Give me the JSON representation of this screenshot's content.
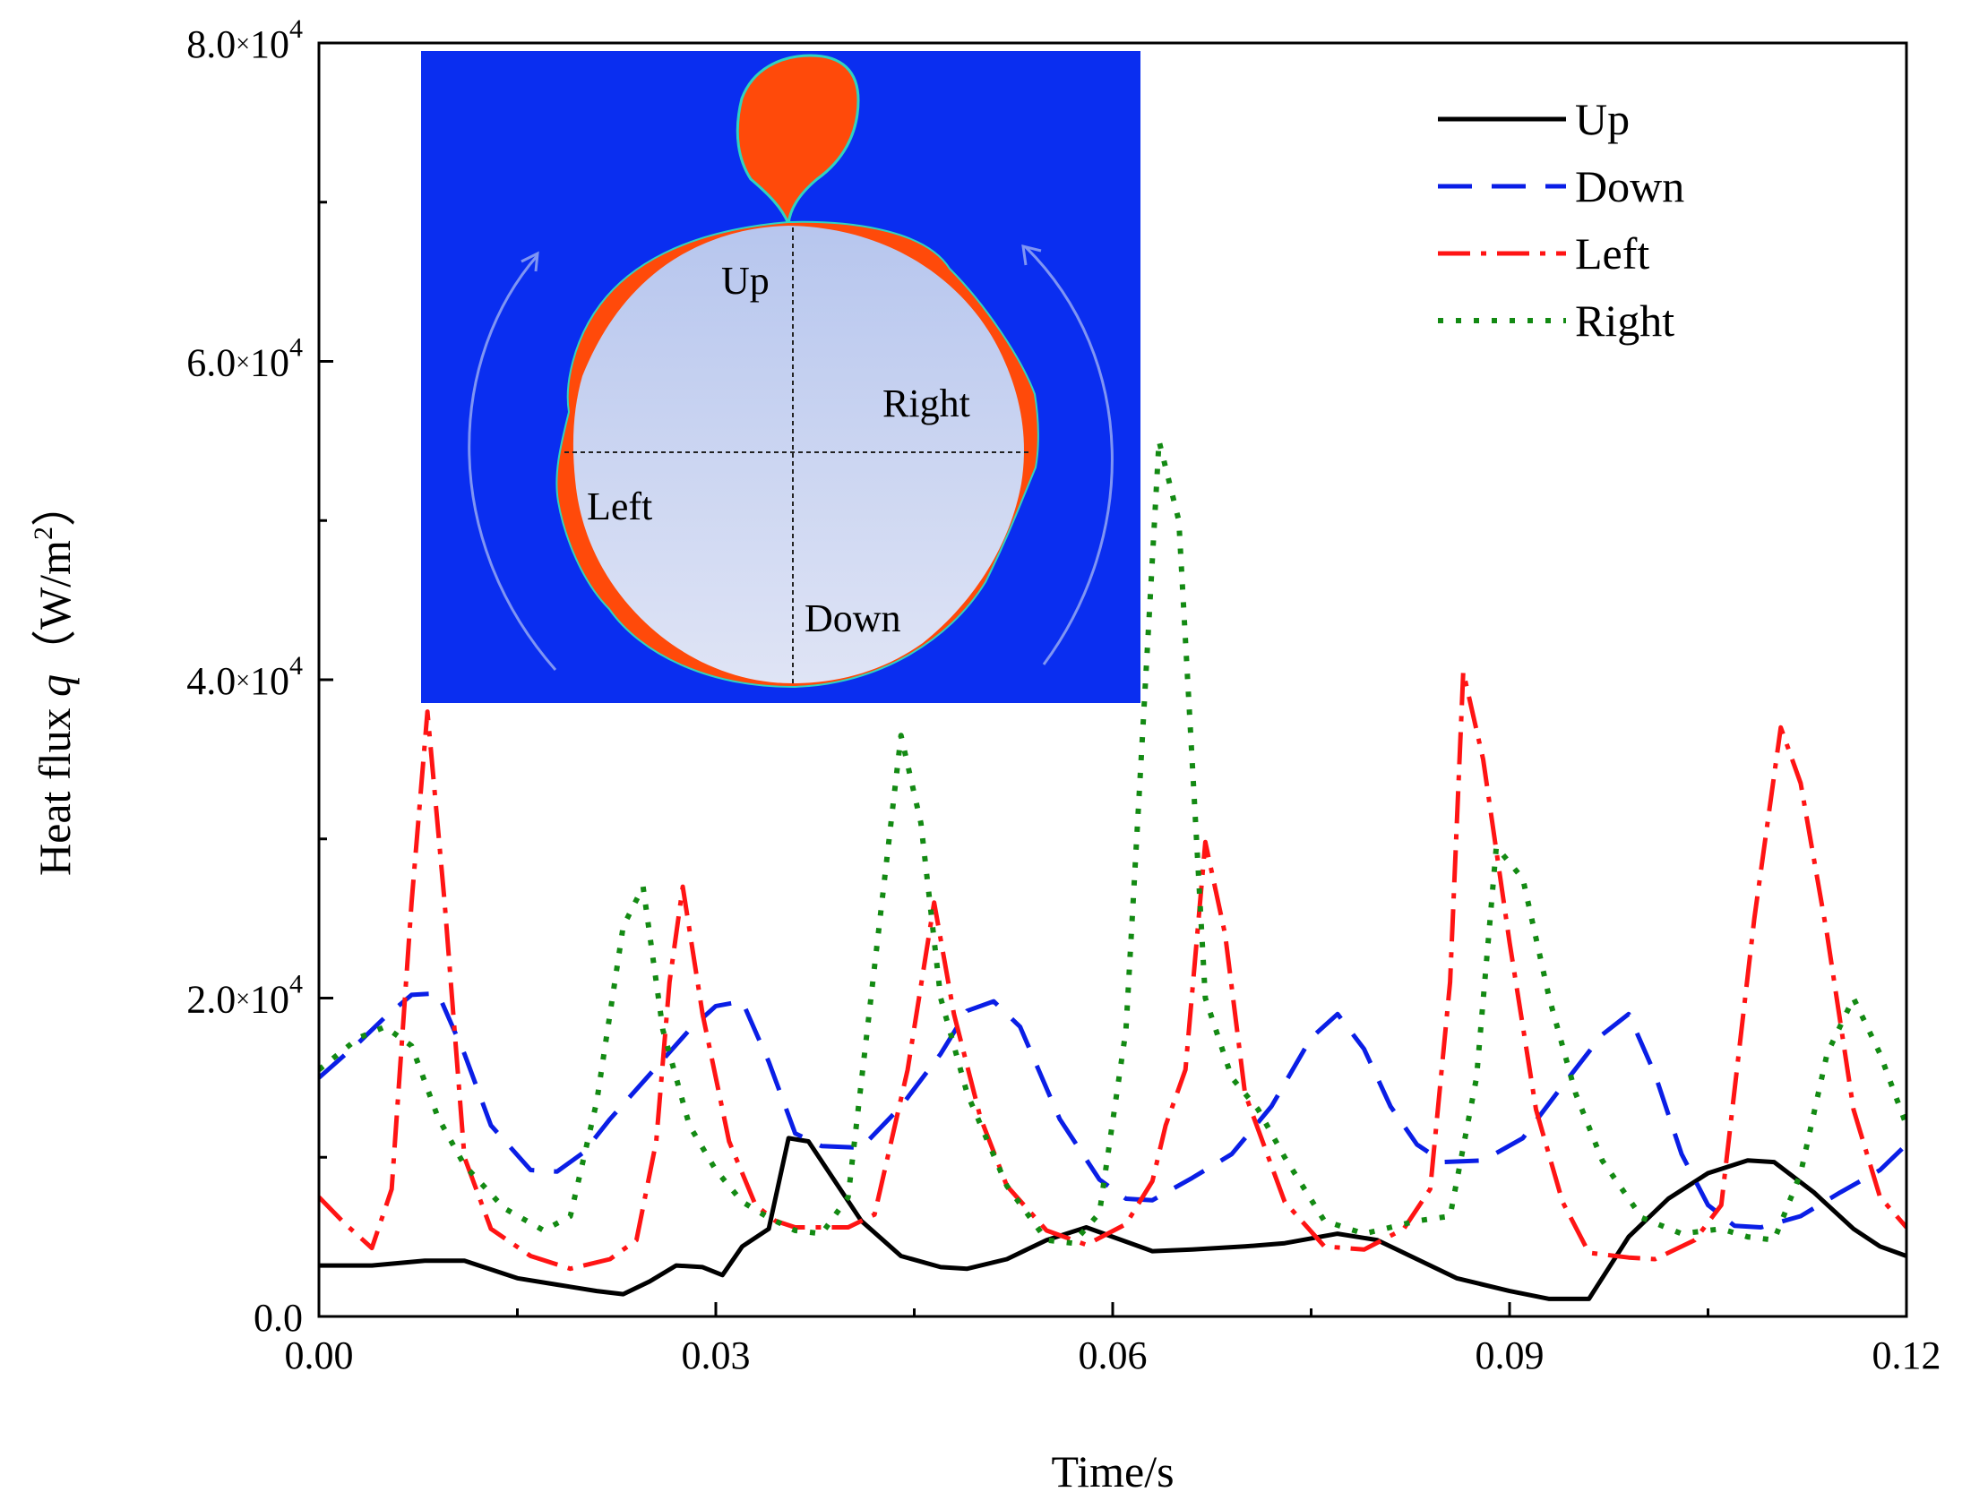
{
  "chart_data": {
    "type": "line",
    "xlabel": "Time/s",
    "ylabel_prefix": "Heat flux ",
    "ylabel_var": "q",
    "ylabel_unit": "（W/m",
    "ylabel_sup": "2",
    "ylabel_close": "）",
    "xlim": [
      0,
      0.12
    ],
    "ylim": [
      0,
      80000
    ],
    "x_ticks": [
      {
        "v": 0.0,
        "label": "0.00"
      },
      {
        "v": 0.03,
        "label": "0.03"
      },
      {
        "v": 0.06,
        "label": "0.06"
      },
      {
        "v": 0.09,
        "label": "0.09"
      },
      {
        "v": 0.12,
        "label": "0.12"
      }
    ],
    "y_ticks": [
      {
        "v": 0,
        "mant": "0.0",
        "exp": ""
      },
      {
        "v": 20000,
        "mant": "2.0",
        "exp": "4"
      },
      {
        "v": 40000,
        "mant": "4.0",
        "exp": "4"
      },
      {
        "v": 60000,
        "mant": "6.0",
        "exp": "4"
      },
      {
        "v": 80000,
        "mant": "8.0",
        "exp": "4"
      }
    ],
    "legend_position": "top-right",
    "series": [
      {
        "name": "Up",
        "color": "#000000",
        "dash": "solid",
        "points": [
          [
            0,
            3200
          ],
          [
            0.004,
            3200
          ],
          [
            0.008,
            3500
          ],
          [
            0.011,
            3500
          ],
          [
            0.015,
            2400
          ],
          [
            0.018,
            2000
          ],
          [
            0.021,
            1600
          ],
          [
            0.023,
            1400
          ],
          [
            0.025,
            2200
          ],
          [
            0.027,
            3200
          ],
          [
            0.029,
            3100
          ],
          [
            0.0305,
            2600
          ],
          [
            0.032,
            4400
          ],
          [
            0.034,
            5500
          ],
          [
            0.0355,
            11200
          ],
          [
            0.037,
            11000
          ],
          [
            0.039,
            8500
          ],
          [
            0.041,
            6000
          ],
          [
            0.044,
            3800
          ],
          [
            0.047,
            3100
          ],
          [
            0.049,
            3000
          ],
          [
            0.052,
            3600
          ],
          [
            0.055,
            4800
          ],
          [
            0.058,
            5600
          ],
          [
            0.06,
            5000
          ],
          [
            0.063,
            4100
          ],
          [
            0.066,
            4200
          ],
          [
            0.07,
            4400
          ],
          [
            0.073,
            4600
          ],
          [
            0.077,
            5200
          ],
          [
            0.08,
            4800
          ],
          [
            0.083,
            3600
          ],
          [
            0.086,
            2400
          ],
          [
            0.09,
            1600
          ],
          [
            0.093,
            1100
          ],
          [
            0.096,
            1100
          ],
          [
            0.099,
            5000
          ],
          [
            0.102,
            7400
          ],
          [
            0.105,
            9000
          ],
          [
            0.108,
            9800
          ],
          [
            0.11,
            9700
          ],
          [
            0.113,
            7800
          ],
          [
            0.116,
            5500
          ],
          [
            0.118,
            4400
          ],
          [
            0.12,
            3800
          ]
        ]
      },
      {
        "name": "Down",
        "color": "#0a1ee6",
        "dash": "dash",
        "points": [
          [
            0,
            15000
          ],
          [
            0.003,
            17200
          ],
          [
            0.005,
            18800
          ],
          [
            0.007,
            20200
          ],
          [
            0.009,
            20300
          ],
          [
            0.011,
            16500
          ],
          [
            0.013,
            12000
          ],
          [
            0.016,
            9200
          ],
          [
            0.018,
            9100
          ],
          [
            0.02,
            10300
          ],
          [
            0.022,
            12400
          ],
          [
            0.025,
            15200
          ],
          [
            0.028,
            18000
          ],
          [
            0.03,
            19500
          ],
          [
            0.032,
            19800
          ],
          [
            0.034,
            16000
          ],
          [
            0.036,
            11500
          ],
          [
            0.038,
            10700
          ],
          [
            0.041,
            10600
          ],
          [
            0.044,
            13200
          ],
          [
            0.047,
            16500
          ],
          [
            0.049,
            19200
          ],
          [
            0.051,
            19800
          ],
          [
            0.053,
            18200
          ],
          [
            0.056,
            12400
          ],
          [
            0.059,
            8600
          ],
          [
            0.061,
            7400
          ],
          [
            0.063,
            7300
          ],
          [
            0.066,
            8700
          ],
          [
            0.069,
            10200
          ],
          [
            0.072,
            13200
          ],
          [
            0.075,
            17500
          ],
          [
            0.077,
            19000
          ],
          [
            0.079,
            16800
          ],
          [
            0.081,
            13200
          ],
          [
            0.083,
            10800
          ],
          [
            0.085,
            9700
          ],
          [
            0.088,
            9800
          ],
          [
            0.091,
            11200
          ],
          [
            0.094,
            14500
          ],
          [
            0.097,
            17700
          ],
          [
            0.099,
            19000
          ],
          [
            0.101,
            15200
          ],
          [
            0.103,
            10200
          ],
          [
            0.105,
            7000
          ],
          [
            0.107,
            5700
          ],
          [
            0.109,
            5600
          ],
          [
            0.112,
            6300
          ],
          [
            0.115,
            7800
          ],
          [
            0.118,
            9200
          ],
          [
            0.12,
            10800
          ]
        ]
      },
      {
        "name": "Left",
        "color": "#ff1414",
        "dash": "dashdot",
        "points": [
          [
            0,
            7500
          ],
          [
            0.002,
            5800
          ],
          [
            0.004,
            4300
          ],
          [
            0.0055,
            8000
          ],
          [
            0.007,
            26000
          ],
          [
            0.0082,
            38000
          ],
          [
            0.0095,
            26000
          ],
          [
            0.011,
            10000
          ],
          [
            0.013,
            5500
          ],
          [
            0.016,
            3800
          ],
          [
            0.019,
            3000
          ],
          [
            0.022,
            3600
          ],
          [
            0.024,
            4800
          ],
          [
            0.0255,
            11000
          ],
          [
            0.0265,
            21000
          ],
          [
            0.0275,
            27000
          ],
          [
            0.029,
            19000
          ],
          [
            0.031,
            11000
          ],
          [
            0.033,
            7000
          ],
          [
            0.0345,
            6000
          ],
          [
            0.036,
            5600
          ],
          [
            0.038,
            5600
          ],
          [
            0.04,
            5600
          ],
          [
            0.042,
            6400
          ],
          [
            0.0445,
            15500
          ],
          [
            0.0465,
            26000
          ],
          [
            0.048,
            19000
          ],
          [
            0.05,
            12500
          ],
          [
            0.052,
            8200
          ],
          [
            0.055,
            5400
          ],
          [
            0.058,
            4500
          ],
          [
            0.061,
            5800
          ],
          [
            0.063,
            8500
          ],
          [
            0.064,
            12000
          ],
          [
            0.0655,
            15500
          ],
          [
            0.067,
            29800
          ],
          [
            0.0685,
            24000
          ],
          [
            0.07,
            14000
          ],
          [
            0.073,
            7200
          ],
          [
            0.076,
            4400
          ],
          [
            0.079,
            4200
          ],
          [
            0.082,
            5500
          ],
          [
            0.084,
            8000
          ],
          [
            0.0855,
            21000
          ],
          [
            0.0865,
            40500
          ],
          [
            0.088,
            35000
          ],
          [
            0.09,
            23500
          ],
          [
            0.092,
            13000
          ],
          [
            0.094,
            7200
          ],
          [
            0.096,
            4000
          ],
          [
            0.099,
            3700
          ],
          [
            0.101,
            3600
          ],
          [
            0.104,
            4800
          ],
          [
            0.106,
            7000
          ],
          [
            0.1085,
            25000
          ],
          [
            0.1105,
            37000
          ],
          [
            0.112,
            33500
          ],
          [
            0.114,
            24000
          ],
          [
            0.116,
            13000
          ],
          [
            0.118,
            7500
          ],
          [
            0.12,
            5600
          ]
        ]
      },
      {
        "name": "Right",
        "color": "#138a13",
        "dash": "dot",
        "points": [
          [
            0,
            15500
          ],
          [
            0.003,
            17500
          ],
          [
            0.005,
            18200
          ],
          [
            0.007,
            17000
          ],
          [
            0.009,
            12500
          ],
          [
            0.011,
            9500
          ],
          [
            0.014,
            6800
          ],
          [
            0.017,
            5400
          ],
          [
            0.019,
            6300
          ],
          [
            0.021,
            13500
          ],
          [
            0.023,
            24500
          ],
          [
            0.0245,
            27000
          ],
          [
            0.026,
            18000
          ],
          [
            0.028,
            12000
          ],
          [
            0.03,
            9200
          ],
          [
            0.032,
            7200
          ],
          [
            0.034,
            6200
          ],
          [
            0.036,
            5400
          ],
          [
            0.038,
            5200
          ],
          [
            0.04,
            7500
          ],
          [
            0.042,
            22000
          ],
          [
            0.044,
            36500
          ],
          [
            0.0455,
            31000
          ],
          [
            0.047,
            20000
          ],
          [
            0.049,
            14000
          ],
          [
            0.052,
            8200
          ],
          [
            0.055,
            4800
          ],
          [
            0.057,
            4600
          ],
          [
            0.059,
            6500
          ],
          [
            0.061,
            18000
          ],
          [
            0.0635,
            55000
          ],
          [
            0.065,
            50000
          ],
          [
            0.067,
            20000
          ],
          [
            0.069,
            15000
          ],
          [
            0.071,
            13000
          ],
          [
            0.073,
            10000
          ],
          [
            0.076,
            6000
          ],
          [
            0.079,
            5200
          ],
          [
            0.081,
            5600
          ],
          [
            0.083,
            6000
          ],
          [
            0.0855,
            6300
          ],
          [
            0.0875,
            15000
          ],
          [
            0.089,
            29500
          ],
          [
            0.091,
            27500
          ],
          [
            0.093,
            20000
          ],
          [
            0.095,
            14000
          ],
          [
            0.097,
            9800
          ],
          [
            0.1,
            6200
          ],
          [
            0.103,
            5200
          ],
          [
            0.106,
            5500
          ],
          [
            0.108,
            5000
          ],
          [
            0.11,
            4800
          ],
          [
            0.112,
            9000
          ],
          [
            0.114,
            16500
          ],
          [
            0.116,
            20000
          ],
          [
            0.118,
            16500
          ],
          [
            0.12,
            12000
          ]
        ]
      }
    ]
  },
  "inset": {
    "labels": {
      "up": "Up",
      "right": "Right",
      "left": "Left",
      "down": "Down"
    },
    "colors": {
      "background": "#0a2ef0",
      "bubble": "#ff4a0a",
      "vapor_top": "#b7c6ee",
      "vapor_bottom": "#dfe4f5"
    }
  }
}
